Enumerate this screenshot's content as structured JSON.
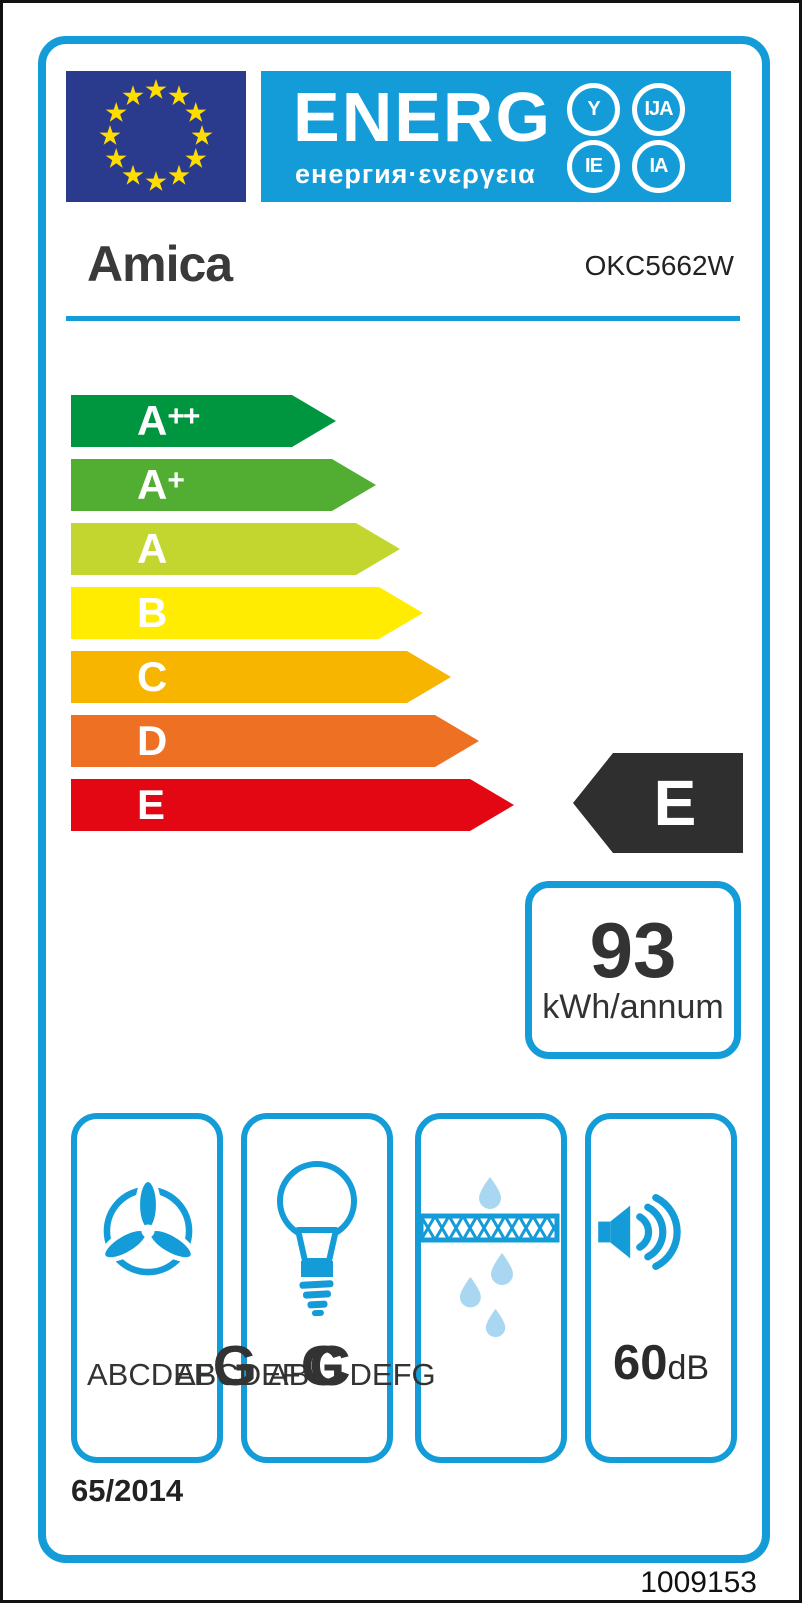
{
  "header": {
    "logo_main": "ENERG",
    "logo_subtitle": "енергия·ενεργεια",
    "logo_variants": [
      "Y",
      "IJA",
      "IE",
      "IA"
    ]
  },
  "brand": {
    "name": "Amica",
    "model": "OKC5662W"
  },
  "rating": {
    "selected_class": "E",
    "classes": [
      {
        "label": "A++",
        "color": "#009640"
      },
      {
        "label": "A+",
        "color": "#52AE32"
      },
      {
        "label": "A",
        "color": "#C3D630"
      },
      {
        "label": "B",
        "color": "#FFEC00"
      },
      {
        "label": "C",
        "color": "#F7B500"
      },
      {
        "label": "D",
        "color": "#EE7023"
      },
      {
        "label": "E",
        "color": "#E30613"
      }
    ]
  },
  "annual_energy": {
    "value": "93",
    "unit": "kWh/annum"
  },
  "features": {
    "fan_efficiency_scale": {
      "prefix": "ABCDEF",
      "class": "G",
      "suffix": ""
    },
    "lighting_efficiency_scale": {
      "prefix": "ABCDEF",
      "class": "G",
      "suffix": ""
    },
    "grease_filtering_scale": {
      "prefix": "AB",
      "class": "C",
      "suffix": "DEFG"
    },
    "noise": {
      "value": "60",
      "unit": "dB"
    }
  },
  "regulation_number": "65/2014",
  "reference_number": "1009153",
  "colors": {
    "accent_blue": "#149CD8",
    "flag_navy": "#2A3A8C",
    "star_yellow": "#FFDD00",
    "indicator_black": "#302F2F",
    "droplet_light_blue": "#A9D6F0",
    "class_e_red": "#E30613"
  }
}
